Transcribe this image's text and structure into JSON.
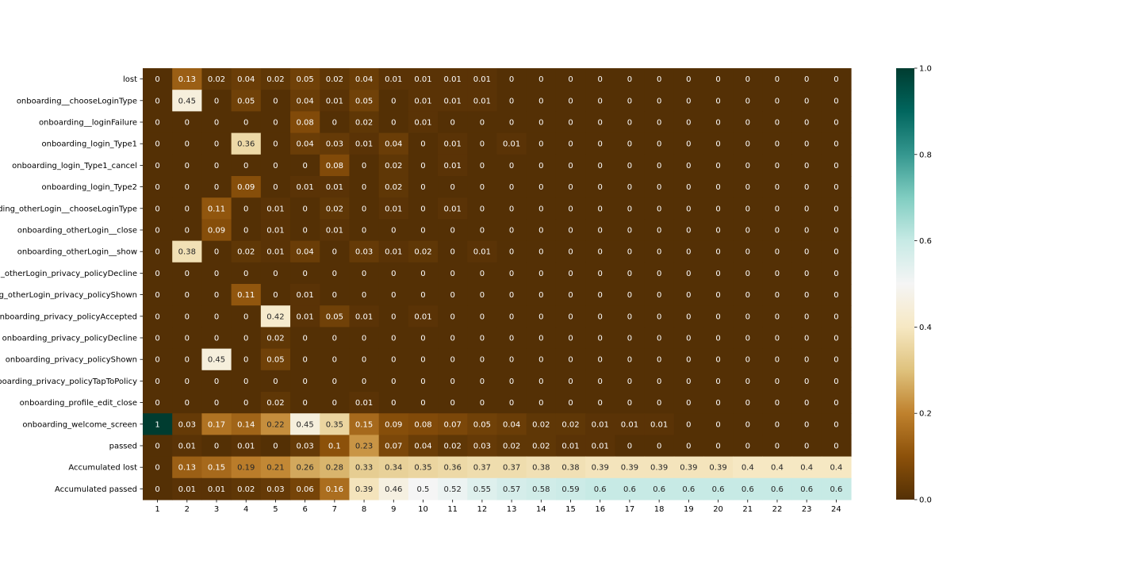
{
  "chart_data": {
    "type": "heatmap",
    "title": "",
    "xlabel": "",
    "ylabel": "",
    "x": [
      "1",
      "2",
      "3",
      "4",
      "5",
      "6",
      "7",
      "8",
      "9",
      "10",
      "11",
      "12",
      "13",
      "14",
      "15",
      "16",
      "17",
      "18",
      "19",
      "20",
      "21",
      "22",
      "23",
      "24"
    ],
    "y": [
      "lost",
      "onboarding__chooseLoginType",
      "onboarding__loginFailure",
      "onboarding_login_Type1",
      "onboarding_login_Type1_cancel",
      "onboarding_login_Type2",
      "onboarding_otherLogin__chooseLoginType",
      "onboarding_otherLogin__close",
      "onboarding_otherLogin__show",
      "onboarding_otherLogin_privacy_policyDecline",
      "onboarding_otherLogin_privacy_policyShown",
      "onboarding_privacy_policyAccepted",
      "onboarding_privacy_policyDecline",
      "onboarding_privacy_policyShown",
      "onboarding_privacy_policyTapToPolicy",
      "onboarding_profile_edit_close",
      "onboarding_welcome_screen",
      "passed",
      "Accumulated lost",
      "Accumulated passed"
    ],
    "values": [
      [
        0,
        0.13,
        0.02,
        0.04,
        0.02,
        0.05,
        0.02,
        0.04,
        0.01,
        0.01,
        0.01,
        0.01,
        0,
        0,
        0,
        0,
        0,
        0,
        0,
        0,
        0,
        0,
        0,
        0
      ],
      [
        0,
        0.45,
        0,
        0.05,
        0,
        0.04,
        0.01,
        0.05,
        0,
        0.01,
        0.01,
        0.01,
        0,
        0,
        0,
        0,
        0,
        0,
        0,
        0,
        0,
        0,
        0,
        0
      ],
      [
        0,
        0,
        0,
        0,
        0,
        0.08,
        0,
        0.02,
        0,
        0.01,
        0,
        0,
        0,
        0,
        0,
        0,
        0,
        0,
        0,
        0,
        0,
        0,
        0,
        0
      ],
      [
        0,
        0,
        0,
        0.36,
        0,
        0.04,
        0.03,
        0.01,
        0.04,
        0,
        0.01,
        0,
        0.01,
        0,
        0,
        0,
        0,
        0,
        0,
        0,
        0,
        0,
        0,
        0
      ],
      [
        0,
        0,
        0,
        0,
        0,
        0,
        0.08,
        0,
        0.02,
        0,
        0.01,
        0,
        0,
        0,
        0,
        0,
        0,
        0,
        0,
        0,
        0,
        0,
        0,
        0
      ],
      [
        0,
        0,
        0,
        0.09,
        0,
        0.01,
        0.01,
        0,
        0.02,
        0,
        0,
        0,
        0,
        0,
        0,
        0,
        0,
        0,
        0,
        0,
        0,
        0,
        0,
        0
      ],
      [
        0,
        0,
        0.11,
        0,
        0.01,
        0,
        0.02,
        0,
        0.01,
        0,
        0.01,
        0,
        0,
        0,
        0,
        0,
        0,
        0,
        0,
        0,
        0,
        0,
        0,
        0
      ],
      [
        0,
        0,
        0.09,
        0,
        0.01,
        0,
        0.01,
        0,
        0,
        0,
        0,
        0,
        0,
        0,
        0,
        0,
        0,
        0,
        0,
        0,
        0,
        0,
        0,
        0
      ],
      [
        0,
        0.38,
        0,
        0.02,
        0.01,
        0.04,
        0,
        0.03,
        0.01,
        0.02,
        0,
        0.01,
        0,
        0,
        0,
        0,
        0,
        0,
        0,
        0,
        0,
        0,
        0,
        0
      ],
      [
        0,
        0,
        0,
        0,
        0,
        0,
        0,
        0,
        0,
        0,
        0,
        0,
        0,
        0,
        0,
        0,
        0,
        0,
        0,
        0,
        0,
        0,
        0,
        0
      ],
      [
        0,
        0,
        0,
        0.11,
        0,
        0.01,
        0,
        0,
        0,
        0,
        0,
        0,
        0,
        0,
        0,
        0,
        0,
        0,
        0,
        0,
        0,
        0,
        0,
        0
      ],
      [
        0,
        0,
        0,
        0,
        0.42,
        0.01,
        0.05,
        0.01,
        0,
        0.01,
        0,
        0,
        0,
        0,
        0,
        0,
        0,
        0,
        0,
        0,
        0,
        0,
        0,
        0
      ],
      [
        0,
        0,
        0,
        0,
        0.02,
        0,
        0,
        0,
        0,
        0,
        0,
        0,
        0,
        0,
        0,
        0,
        0,
        0,
        0,
        0,
        0,
        0,
        0,
        0
      ],
      [
        0,
        0,
        0.45,
        0,
        0.05,
        0,
        0,
        0,
        0,
        0,
        0,
        0,
        0,
        0,
        0,
        0,
        0,
        0,
        0,
        0,
        0,
        0,
        0,
        0
      ],
      [
        0,
        0,
        0,
        0,
        0,
        0,
        0,
        0,
        0,
        0,
        0,
        0,
        0,
        0,
        0,
        0,
        0,
        0,
        0,
        0,
        0,
        0,
        0,
        0
      ],
      [
        0,
        0,
        0,
        0,
        0.02,
        0,
        0,
        0.01,
        0,
        0,
        0,
        0,
        0,
        0,
        0,
        0,
        0,
        0,
        0,
        0,
        0,
        0,
        0,
        0
      ],
      [
        1,
        0.03,
        0.17,
        0.14,
        0.22,
        0.45,
        0.35,
        0.15,
        0.09,
        0.08,
        0.07,
        0.05,
        0.04,
        0.02,
        0.02,
        0.01,
        0.01,
        0.01,
        0,
        0,
        0,
        0,
        0,
        0
      ],
      [
        0,
        0.01,
        0,
        0.01,
        0,
        0.03,
        0.1,
        0.23,
        0.07,
        0.04,
        0.02,
        0.03,
        0.02,
        0.02,
        0.01,
        0.01,
        0,
        0,
        0,
        0,
        0,
        0,
        0,
        0
      ],
      [
        0,
        0.13,
        0.15,
        0.19,
        0.21,
        0.26,
        0.28,
        0.33,
        0.34,
        0.35,
        0.36,
        0.37,
        0.37,
        0.38,
        0.38,
        0.39,
        0.39,
        0.39,
        0.39,
        0.39,
        0.4,
        0.4,
        0.4,
        0.4
      ],
      [
        0,
        0.01,
        0.01,
        0.02,
        0.03,
        0.06,
        0.16,
        0.39,
        0.46,
        0.5,
        0.52,
        0.55,
        0.57,
        0.58,
        0.59,
        0.6,
        0.6,
        0.6,
        0.6,
        0.6,
        0.6,
        0.6,
        0.6,
        0.6
      ]
    ],
    "colorbar": {
      "range": [
        0,
        1
      ],
      "ticks": [
        "0.0",
        "0.2",
        "0.4",
        "0.6",
        "0.8",
        "1.0"
      ]
    },
    "colormap": "BrBG",
    "colormap_stops": [
      "#543005",
      "#8c510a",
      "#bf812d",
      "#dfc27d",
      "#f6e8c3",
      "#f5f5f5",
      "#c7eae5",
      "#80cdc1",
      "#35978f",
      "#01665e",
      "#003c30"
    ],
    "grid": false,
    "legend": "none"
  }
}
